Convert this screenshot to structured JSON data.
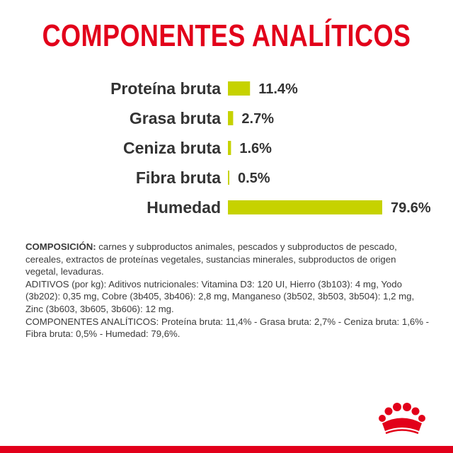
{
  "page": {
    "title": "COMPONENTES ANALÍTICOS"
  },
  "colors": {
    "title": "#e2001a",
    "bar": "#c6d200",
    "text": "#333333",
    "brand": "#e2001a"
  },
  "chart_data": {
    "type": "bar",
    "orientation": "horizontal",
    "categories": [
      "Proteína bruta",
      "Grasa bruta",
      "Ceniza bruta",
      "Fibra bruta",
      "Humedad"
    ],
    "values": [
      11.4,
      2.7,
      1.6,
      0.5,
      79.6
    ],
    "value_labels": [
      "11.4%",
      "2.7%",
      "1.6%",
      "0.5%",
      "79.6%"
    ],
    "xlim": [
      0,
      79.6
    ],
    "grid": false
  },
  "composition": {
    "heading": "COMPOSICIÓN:",
    "text": " carnes y subproductos animales, pescados y subproductos de pescado, cereales, extractos de proteínas vegetales, sustancias minerales, subproductos de origen vegetal, levaduras.",
    "additives": "ADITIVOS (por kg): Aditivos nutricionales: Vitamina D3: 120 UI, Hierro (3b103): 4 mg, Yodo (3b202): 0,35 mg, Cobre (3b405, 3b406): 2,8 mg, Manganeso (3b502, 3b503, 3b504): 1,2 mg, Zinc (3b603, 3b605, 3b606): 12 mg.",
    "analytical": "COMPONENTES ANALÍTICOS: Proteína bruta: 11,4% - Grasa bruta: 2,7% - Ceniza bruta: 1,6% - Fibra bruta: 0,5% - Humedad: 79,6%."
  },
  "logo": {
    "icon": "royal-crown-icon"
  }
}
